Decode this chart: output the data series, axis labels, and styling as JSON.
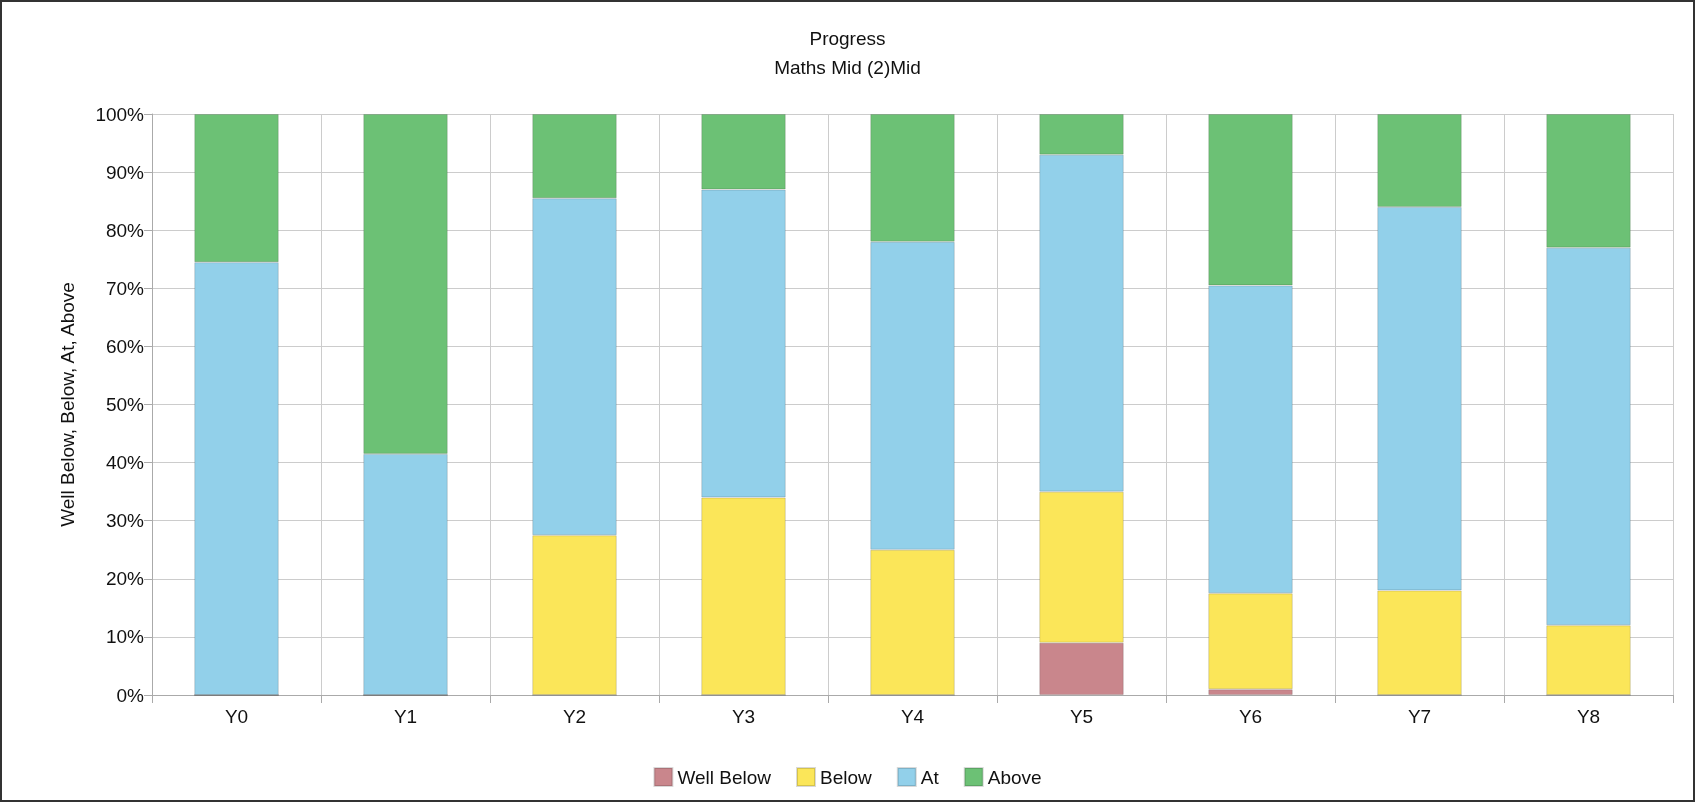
{
  "chart_data": {
    "type": "bar",
    "title": "Progress",
    "subtitle": "Maths Mid (2)Mid",
    "ylabel": "Well Below, Below, At, Above",
    "categories": [
      "Y0",
      "Y1",
      "Y2",
      "Y3",
      "Y4",
      "Y5",
      "Y6",
      "Y7",
      "Y8"
    ],
    "stacked": true,
    "ylim": [
      0,
      100
    ],
    "yticks": [
      {
        "value": 0,
        "label": "0%"
      },
      {
        "value": 10,
        "label": "10%"
      },
      {
        "value": 20,
        "label": "20%"
      },
      {
        "value": 30,
        "label": "30%"
      },
      {
        "value": 40,
        "label": "40%"
      },
      {
        "value": 50,
        "label": "50%"
      },
      {
        "value": 60,
        "label": "60%"
      },
      {
        "value": 70,
        "label": "70%"
      },
      {
        "value": 80,
        "label": "80%"
      },
      {
        "value": 90,
        "label": "90%"
      },
      {
        "value": 100,
        "label": "100%"
      }
    ],
    "grid": true,
    "legend": "bottom",
    "series": [
      {
        "name": "Well Below",
        "color": "#c9868c",
        "values": [
          0,
          0,
          0,
          0,
          0,
          9,
          1,
          0,
          0
        ]
      },
      {
        "name": "Below",
        "color": "#fbe659",
        "values": [
          0,
          0,
          27.5,
          34,
          25,
          26,
          16.5,
          18,
          12
        ]
      },
      {
        "name": "At",
        "color": "#92d0ea",
        "values": [
          74.5,
          41.5,
          58,
          53,
          53,
          58,
          53,
          66,
          65
        ]
      },
      {
        "name": "Above",
        "color": "#6cc175",
        "values": [
          25.5,
          58.5,
          14.5,
          13,
          22,
          7,
          29.5,
          16,
          23
        ]
      }
    ]
  }
}
